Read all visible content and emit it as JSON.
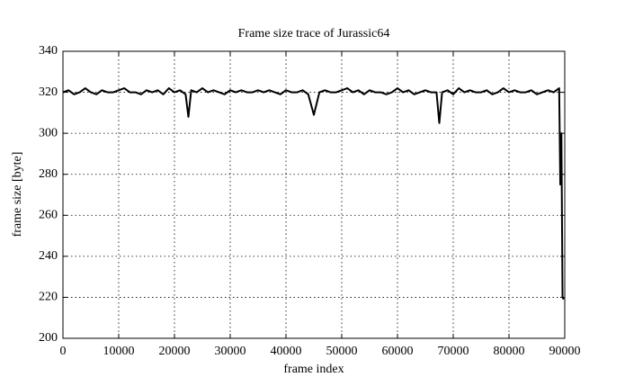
{
  "chart_data": {
    "type": "line",
    "title": "Frame size trace of Jurassic64",
    "x_label": "frame index",
    "y_label": "frame size [byte]",
    "color": "#000000",
    "grid": true,
    "xlim": [
      0,
      90000
    ],
    "ylim": [
      200,
      340
    ],
    "xticks": [
      0,
      10000,
      20000,
      30000,
      40000,
      50000,
      60000,
      70000,
      80000,
      90000
    ],
    "yticks": [
      200,
      220,
      240,
      260,
      280,
      300,
      320,
      340
    ],
    "x": [
      0,
      1000,
      2000,
      3000,
      4000,
      5000,
      6000,
      7000,
      8000,
      9000,
      10000,
      11000,
      12000,
      13000,
      14000,
      15000,
      16000,
      17000,
      18000,
      19000,
      20000,
      21000,
      22000,
      22500,
      23000,
      24000,
      25000,
      26000,
      27000,
      28000,
      29000,
      30000,
      31000,
      32000,
      33000,
      34000,
      35000,
      36000,
      37000,
      38000,
      39000,
      40000,
      41000,
      42000,
      43000,
      44000,
      45000,
      46000,
      47000,
      48000,
      49000,
      50000,
      51000,
      52000,
      53000,
      54000,
      55000,
      56000,
      57000,
      58000,
      59000,
      60000,
      61000,
      62000,
      63000,
      64000,
      65000,
      66000,
      67000,
      67500,
      68000,
      69000,
      70000,
      71000,
      72000,
      73000,
      74000,
      75000,
      76000,
      77000,
      78000,
      79000,
      80000,
      81000,
      82000,
      83000,
      84000,
      85000,
      86000,
      87000,
      88000,
      89000,
      89200,
      89400,
      89600,
      89800
    ],
    "values": [
      320,
      321,
      319,
      320,
      322,
      320,
      319,
      321,
      320,
      320,
      321,
      322,
      320,
      320,
      319,
      321,
      320,
      321,
      319,
      322,
      320,
      321,
      319,
      308,
      321,
      320,
      322,
      320,
      321,
      320,
      319,
      321,
      320,
      321,
      320,
      320,
      321,
      320,
      321,
      320,
      319,
      321,
      320,
      320,
      321,
      319,
      309,
      320,
      321,
      320,
      320,
      321,
      322,
      320,
      321,
      319,
      321,
      320,
      320,
      319,
      320,
      322,
      320,
      321,
      319,
      320,
      321,
      320,
      320,
      305,
      320,
      321,
      319,
      322,
      320,
      321,
      320,
      320,
      321,
      319,
      320,
      322,
      320,
      321,
      320,
      320,
      321,
      319,
      320,
      321,
      320,
      322,
      275,
      300,
      220,
      219
    ]
  }
}
